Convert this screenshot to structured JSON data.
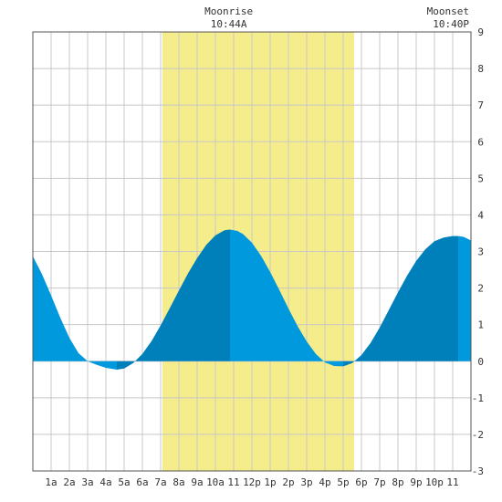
{
  "chart_data": {
    "type": "area",
    "title": "",
    "xlabel": "",
    "ylabel": "",
    "x_unit": "hour of day",
    "xlim": [
      0,
      24
    ],
    "ylim": [
      -3,
      9
    ],
    "y_ticks": [
      -3,
      -2,
      -1,
      0,
      1,
      2,
      3,
      4,
      5,
      6,
      7,
      8,
      9
    ],
    "x_ticks": [
      {
        "x": 1,
        "label": "1a"
      },
      {
        "x": 2,
        "label": "2a"
      },
      {
        "x": 3,
        "label": "3a"
      },
      {
        "x": 4,
        "label": "4a"
      },
      {
        "x": 5,
        "label": "5a"
      },
      {
        "x": 6,
        "label": "6a"
      },
      {
        "x": 7,
        "label": "7a"
      },
      {
        "x": 8,
        "label": "8a"
      },
      {
        "x": 9,
        "label": "9a"
      },
      {
        "x": 10,
        "label": "10a"
      },
      {
        "x": 11,
        "label": "11"
      },
      {
        "x": 12,
        "label": "12p"
      },
      {
        "x": 13,
        "label": "1p"
      },
      {
        "x": 14,
        "label": "2p"
      },
      {
        "x": 15,
        "label": "3p"
      },
      {
        "x": 16,
        "label": "4p"
      },
      {
        "x": 17,
        "label": "5p"
      },
      {
        "x": 18,
        "label": "6p"
      },
      {
        "x": 19,
        "label": "7p"
      },
      {
        "x": 20,
        "label": "8p"
      },
      {
        "x": 21,
        "label": "9p"
      },
      {
        "x": 22,
        "label": "10p"
      },
      {
        "x": 23,
        "label": "11"
      }
    ],
    "grid": true,
    "extremes": [
      {
        "x": 4.6,
        "y": -0.23,
        "kind": "low"
      },
      {
        "x": 10.8,
        "y": 3.6,
        "kind": "high"
      },
      {
        "x": 17.0,
        "y": -0.14,
        "kind": "low"
      },
      {
        "x": 23.3,
        "y": 3.42,
        "kind": "high"
      }
    ],
    "curve": [
      {
        "x": 0.0,
        "y": 2.87
      },
      {
        "x": 0.5,
        "y": 2.38
      },
      {
        "x": 1.0,
        "y": 1.8
      },
      {
        "x": 1.5,
        "y": 1.19
      },
      {
        "x": 2.0,
        "y": 0.64
      },
      {
        "x": 2.5,
        "y": 0.22
      },
      {
        "x": 3.0,
        "y": 0.0
      },
      {
        "x": 3.5,
        "y": -0.1
      },
      {
        "x": 4.0,
        "y": -0.18
      },
      {
        "x": 4.6,
        "y": -0.23
      },
      {
        "x": 5.0,
        "y": -0.2
      },
      {
        "x": 5.5,
        "y": -0.05
      },
      {
        "x": 6.0,
        "y": 0.2
      },
      {
        "x": 6.5,
        "y": 0.55
      },
      {
        "x": 7.0,
        "y": 0.98
      },
      {
        "x": 7.5,
        "y": 1.45
      },
      {
        "x": 8.0,
        "y": 1.93
      },
      {
        "x": 8.5,
        "y": 2.4
      },
      {
        "x": 9.0,
        "y": 2.82
      },
      {
        "x": 9.5,
        "y": 3.18
      },
      {
        "x": 10.0,
        "y": 3.44
      },
      {
        "x": 10.5,
        "y": 3.58
      },
      {
        "x": 10.8,
        "y": 3.6
      },
      {
        "x": 11.2,
        "y": 3.56
      },
      {
        "x": 11.5,
        "y": 3.48
      },
      {
        "x": 12.0,
        "y": 3.24
      },
      {
        "x": 12.5,
        "y": 2.88
      },
      {
        "x": 13.0,
        "y": 2.44
      },
      {
        "x": 13.5,
        "y": 1.95
      },
      {
        "x": 14.0,
        "y": 1.44
      },
      {
        "x": 14.5,
        "y": 0.96
      },
      {
        "x": 15.0,
        "y": 0.54
      },
      {
        "x": 15.5,
        "y": 0.2
      },
      {
        "x": 16.0,
        "y": -0.03
      },
      {
        "x": 16.5,
        "y": -0.13
      },
      {
        "x": 17.0,
        "y": -0.14
      },
      {
        "x": 17.5,
        "y": -0.05
      },
      {
        "x": 18.0,
        "y": 0.17
      },
      {
        "x": 18.5,
        "y": 0.5
      },
      {
        "x": 19.0,
        "y": 0.92
      },
      {
        "x": 19.5,
        "y": 1.4
      },
      {
        "x": 20.0,
        "y": 1.88
      },
      {
        "x": 20.5,
        "y": 2.34
      },
      {
        "x": 21.0,
        "y": 2.74
      },
      {
        "x": 21.5,
        "y": 3.06
      },
      {
        "x": 22.0,
        "y": 3.28
      },
      {
        "x": 22.5,
        "y": 3.38
      },
      {
        "x": 23.0,
        "y": 3.42
      },
      {
        "x": 23.3,
        "y": 3.42
      },
      {
        "x": 23.6,
        "y": 3.4
      },
      {
        "x": 24.0,
        "y": 3.3
      }
    ],
    "moon_window": {
      "start": 7.1,
      "end": 17.6
    },
    "annotations": [
      {
        "x": 10.73,
        "title": "Moonrise",
        "time": "10:44A"
      },
      {
        "x": 22.67,
        "title": "Moonset",
        "time": "10:40P"
      }
    ],
    "colors": {
      "fill_light": "#0099dd",
      "fill_dark": "#0080bb",
      "moon_band": "#f5ec8b",
      "grid": "#c8c8c8",
      "frame": "#555555",
      "text": "#333333"
    }
  }
}
